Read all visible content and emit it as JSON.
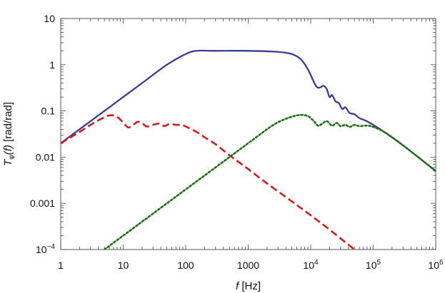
{
  "chart_data": {
    "type": "line",
    "title": "",
    "xscale": "log",
    "yscale": "log",
    "xlim": [
      1,
      1000000
    ],
    "ylim": [
      0.0001,
      10
    ],
    "grid": false,
    "legend": "none",
    "xlabel": {
      "symbol": "f",
      "unit": " [Hz]"
    },
    "ylabel": {
      "symbol": "T",
      "subscript": "φ",
      "arg": "(f)",
      "unit": " [rad/rad]"
    },
    "x_ticks": [
      {
        "value": 1,
        "label": "1"
      },
      {
        "value": 10,
        "label": "10"
      },
      {
        "value": 100,
        "label": "100"
      },
      {
        "value": 1000,
        "label": "1000"
      },
      {
        "value": 10000,
        "base": "10",
        "exp": "4"
      },
      {
        "value": 100000,
        "base": "10",
        "exp": "5"
      },
      {
        "value": 1000000,
        "base": "10",
        "exp": "6"
      }
    ],
    "y_ticks": [
      {
        "value": 0.0001,
        "base": "10",
        "exp": "−4"
      },
      {
        "value": 0.001,
        "label": "0.001"
      },
      {
        "value": 0.01,
        "label": "0.01"
      },
      {
        "value": 0.1,
        "label": "0.1"
      },
      {
        "value": 1,
        "label": "1"
      },
      {
        "value": 10,
        "label": "10"
      }
    ],
    "series": [
      {
        "style": "solid",
        "color": "#3a3c96",
        "x": [
          1,
          2,
          5,
          10,
          20,
          50,
          100,
          150,
          300,
          1000,
          3000,
          5000,
          7000,
          9000,
          11000,
          12500,
          14000,
          16000,
          18000,
          20000,
          22000,
          25000,
          28000,
          32000,
          36000,
          42000,
          50000,
          60000,
          75000,
          100000,
          150000,
          300000,
          1000000
        ],
        "y": [
          0.02,
          0.04,
          0.1,
          0.2,
          0.4,
          1.0,
          1.7,
          2.0,
          2.0,
          2.0,
          1.9,
          1.7,
          1.3,
          0.8,
          0.45,
          0.33,
          0.32,
          0.35,
          0.3,
          0.2,
          0.22,
          0.16,
          0.15,
          0.11,
          0.12,
          0.09,
          0.085,
          0.07,
          0.062,
          0.05,
          0.035,
          0.018,
          0.005
        ]
      },
      {
        "style": "dashed",
        "color": "#d01c1c",
        "x": [
          1,
          2,
          3,
          4.5,
          6,
          7.5,
          9,
          10.5,
          12,
          14,
          17,
          20,
          24,
          30,
          37,
          45,
          55,
          70,
          85,
          100,
          150,
          200,
          300,
          500,
          700,
          1000,
          2000,
          5000,
          10000,
          20000,
          50000
        ],
        "y": [
          0.02,
          0.035,
          0.05,
          0.068,
          0.08,
          0.078,
          0.065,
          0.052,
          0.044,
          0.048,
          0.058,
          0.054,
          0.046,
          0.05,
          0.053,
          0.047,
          0.052,
          0.05,
          0.05,
          0.046,
          0.035,
          0.027,
          0.019,
          0.011,
          0.0079,
          0.0055,
          0.0027,
          0.0011,
          0.00055,
          0.00027,
          0.0001
        ]
      },
      {
        "style": "dotted",
        "color": "#1e6e16",
        "x": [
          5,
          10,
          20,
          50,
          100,
          200,
          500,
          1000,
          2000,
          3000,
          5000,
          7000,
          9000,
          11000,
          13000,
          15000,
          18000,
          22000,
          26000,
          30000,
          36000,
          42000,
          50000,
          60000,
          80000,
          100000,
          150000,
          300000,
          1000000
        ],
        "y": [
          0.0001,
          0.0002,
          0.0004,
          0.001,
          0.002,
          0.004,
          0.01,
          0.02,
          0.04,
          0.057,
          0.075,
          0.082,
          0.077,
          0.062,
          0.048,
          0.052,
          0.06,
          0.048,
          0.055,
          0.047,
          0.05,
          0.045,
          0.05,
          0.047,
          0.048,
          0.045,
          0.035,
          0.018,
          0.005
        ]
      }
    ]
  }
}
